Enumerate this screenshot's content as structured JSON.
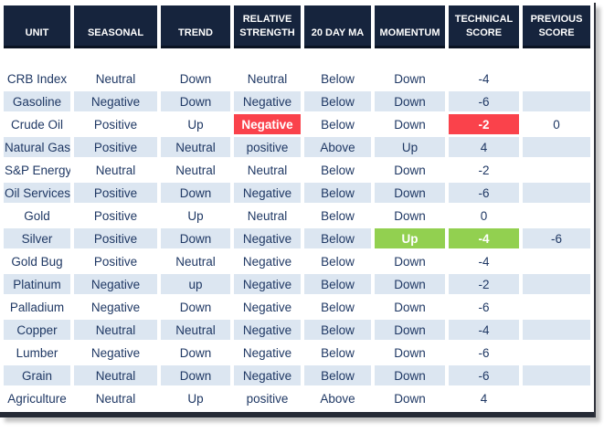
{
  "title": "Commodity technical score table",
  "colors": {
    "header_bg": "#16243d",
    "header_text": "#ffffff",
    "header_underline": "#0a1322",
    "body_text": "#1f3864",
    "stripe_bg": "#dce6f1",
    "negative_highlight": "#fa424b",
    "positive_highlight": "#92d050",
    "bottom_border": "#262b36"
  },
  "chart_data": {
    "type": "table",
    "columns": [
      {
        "key": "unit",
        "label": "UNIT"
      },
      {
        "key": "seasonal",
        "label": "SEASONAL"
      },
      {
        "key": "trend",
        "label": "TREND"
      },
      {
        "key": "relative_strength",
        "label": "RELATIVE STRENGTH"
      },
      {
        "key": "ma20",
        "label": "20 DAY MA"
      },
      {
        "key": "momentum",
        "label": "MOMENTUM"
      },
      {
        "key": "technical_score",
        "label": "TECHNICAL SCORE"
      },
      {
        "key": "previous_score",
        "label": "PREVIOUS SCORE"
      }
    ],
    "rows": [
      {
        "unit": "CRB Index",
        "seasonal": "Neutral",
        "trend": "Down",
        "relative_strength": "Neutral",
        "ma20": "Below",
        "momentum": "Down",
        "technical_score": "-4",
        "previous_score": "",
        "highlight": {}
      },
      {
        "unit": "Gasoline",
        "seasonal": "Negative",
        "trend": "Down",
        "relative_strength": "Negative",
        "ma20": "Below",
        "momentum": "Down",
        "technical_score": "-6",
        "previous_score": "",
        "highlight": {}
      },
      {
        "unit": "Crude Oil",
        "seasonal": "Positive",
        "trend": "Up",
        "relative_strength": "Negative",
        "ma20": "Below",
        "momentum": "Down",
        "technical_score": "-2",
        "previous_score": "0",
        "highlight": {
          "relative_strength": "red",
          "technical_score": "red"
        }
      },
      {
        "unit": "Natural Gas",
        "seasonal": "Positive",
        "trend": "Neutral",
        "relative_strength": "positive",
        "ma20": "Above",
        "momentum": "Up",
        "technical_score": "4",
        "previous_score": "",
        "highlight": {}
      },
      {
        "unit": "S&P Energy",
        "seasonal": "Neutral",
        "trend": "Neutral",
        "relative_strength": "Neutral",
        "ma20": "Below",
        "momentum": "Down",
        "technical_score": "-2",
        "previous_score": "",
        "highlight": {}
      },
      {
        "unit": "Oil Services",
        "seasonal": "Positive",
        "trend": "Down",
        "relative_strength": "Negative",
        "ma20": "Below",
        "momentum": "Down",
        "technical_score": "-6",
        "previous_score": "",
        "highlight": {}
      },
      {
        "unit": "Gold",
        "seasonal": "Positive",
        "trend": "Up",
        "relative_strength": "Neutral",
        "ma20": "Below",
        "momentum": "Down",
        "technical_score": "0",
        "previous_score": "",
        "highlight": {}
      },
      {
        "unit": "Silver",
        "seasonal": "Positive",
        "trend": "Down",
        "relative_strength": "Negative",
        "ma20": "Below",
        "momentum": "Up",
        "technical_score": "-4",
        "previous_score": "-6",
        "highlight": {
          "momentum": "green",
          "technical_score": "green"
        }
      },
      {
        "unit": "Gold Bug",
        "seasonal": "Positive",
        "trend": "Neutral",
        "relative_strength": "Negative",
        "ma20": "Below",
        "momentum": "Down",
        "technical_score": "-4",
        "previous_score": "",
        "highlight": {}
      },
      {
        "unit": "Platinum",
        "seasonal": "Negative",
        "trend": "up",
        "relative_strength": "Negative",
        "ma20": "Below",
        "momentum": "Down",
        "technical_score": "-2",
        "previous_score": "",
        "highlight": {}
      },
      {
        "unit": "Palladium",
        "seasonal": "Negative",
        "trend": "Down",
        "relative_strength": "Negative",
        "ma20": "Below",
        "momentum": "Down",
        "technical_score": "-6",
        "previous_score": "",
        "highlight": {}
      },
      {
        "unit": "Copper",
        "seasonal": "Neutral",
        "trend": "Neutral",
        "relative_strength": "Negative",
        "ma20": "Below",
        "momentum": "Down",
        "technical_score": "-4",
        "previous_score": "",
        "highlight": {}
      },
      {
        "unit": "Lumber",
        "seasonal": "Negative",
        "trend": "Down",
        "relative_strength": "Negative",
        "ma20": "Below",
        "momentum": "Down",
        "technical_score": "-6",
        "previous_score": "",
        "highlight": {}
      },
      {
        "unit": "Grain",
        "seasonal": "Neutral",
        "trend": "Down",
        "relative_strength": "Negative",
        "ma20": "Below",
        "momentum": "Down",
        "technical_score": "-6",
        "previous_score": "",
        "highlight": {}
      },
      {
        "unit": "Agriculture",
        "seasonal": "Neutral",
        "trend": "Up",
        "relative_strength": "positive",
        "ma20": "Above",
        "momentum": "Down",
        "technical_score": "4",
        "previous_score": "",
        "highlight": {}
      }
    ]
  }
}
